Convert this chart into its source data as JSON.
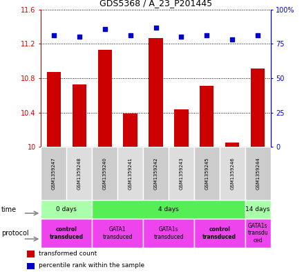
{
  "title": "GDS5368 / A_23_P201445",
  "samples": [
    "GSM1359247",
    "GSM1359248",
    "GSM1359240",
    "GSM1359241",
    "GSM1359242",
    "GSM1359243",
    "GSM1359245",
    "GSM1359246",
    "GSM1359244"
  ],
  "bar_values": [
    10.87,
    10.73,
    11.13,
    10.39,
    11.27,
    10.44,
    10.71,
    10.05,
    10.91
  ],
  "percentile_values": [
    81,
    80,
    86,
    81,
    87,
    80,
    81,
    78,
    81
  ],
  "ylim_left": [
    10,
    11.6
  ],
  "ylim_right": [
    0,
    100
  ],
  "yticks_left": [
    10,
    10.4,
    10.8,
    11.2,
    11.6
  ],
  "ytick_labels_left": [
    "10",
    "10.4",
    "10.8",
    "11.2",
    "11.6"
  ],
  "yticks_right": [
    0,
    25,
    50,
    75,
    100
  ],
  "ytick_labels_right": [
    "0",
    "25",
    "50",
    "75",
    "100%"
  ],
  "bar_color": "#CC0000",
  "dot_color": "#0000CC",
  "bar_width": 0.55,
  "time_groups": [
    {
      "label": "0 days",
      "start": 0,
      "end": 2,
      "color": "#AAFFAA"
    },
    {
      "label": "4 days",
      "start": 2,
      "end": 8,
      "color": "#55EE55"
    },
    {
      "label": "14 days",
      "start": 8,
      "end": 9,
      "color": "#AAFFAA"
    }
  ],
  "protocol_groups": [
    {
      "label": "control\ntransduced",
      "start": 0,
      "end": 2,
      "color": "#EE44EE",
      "bold": true
    },
    {
      "label": "GATA1\ntransduced",
      "start": 2,
      "end": 4,
      "color": "#EE44EE",
      "bold": false
    },
    {
      "label": "GATA1s\ntransduced",
      "start": 4,
      "end": 6,
      "color": "#EE44EE",
      "bold": false
    },
    {
      "label": "control\ntransduced",
      "start": 6,
      "end": 8,
      "color": "#EE44EE",
      "bold": true
    },
    {
      "label": "GATA1s\ntransdu\nced",
      "start": 8,
      "end": 9,
      "color": "#EE44EE",
      "bold": false
    }
  ],
  "legend_items": [
    {
      "color": "#CC0000",
      "label": "transformed count"
    },
    {
      "color": "#0000CC",
      "label": "percentile rank within the sample"
    }
  ],
  "grid_color": "#000000",
  "background_color": "#FFFFFF",
  "label_color_left": "#CC0000",
  "label_color_right": "#0000CC",
  "sample_bg_color": "#CCCCCC",
  "sample_bg_alt": "#DDDDDD"
}
